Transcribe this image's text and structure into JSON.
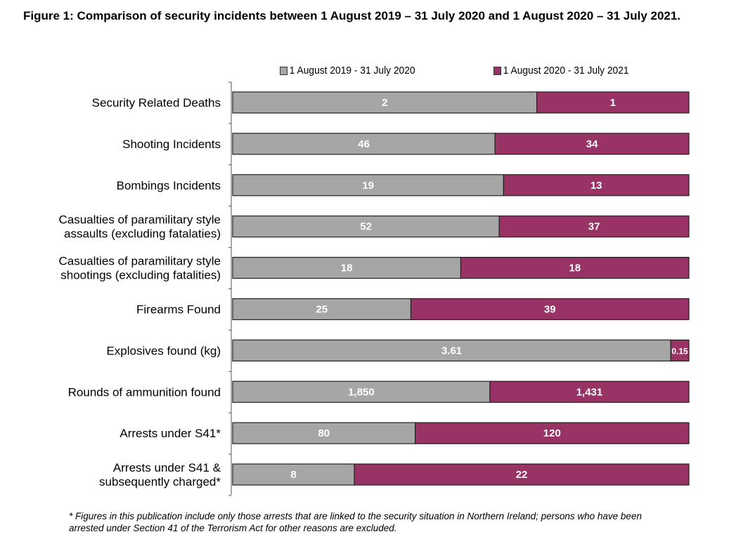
{
  "title": "Figure 1: Comparison of security incidents between 1 August 2019 – 31 July 2020 and 1 August 2020 – 31 July 2021.",
  "footnote": "* Figures in this publication include only those arrests that are linked to the security situation in Northern Ireland; persons who have been arrested under Section 41 of the Terrorism Act for other reasons are excluded.",
  "chart_data": {
    "type": "bar",
    "orientation": "horizontal",
    "stacking": "percent",
    "title": "Figure 1: Comparison of security incidents between 1 August 2019 – 31 July 2020 and 1 August 2020 – 31 July 2021.",
    "xlabel": "",
    "ylabel": "",
    "legend_position": "top",
    "grid": false,
    "categories": [
      [
        "Security Related Deaths"
      ],
      [
        "Shooting Incidents"
      ],
      [
        "Bombings Incidents"
      ],
      [
        "Casualties of paramilitary style",
        "assaults (excluding fatalaties)"
      ],
      [
        "Casualties of paramilitary style",
        "shootings (excluding fatalities)"
      ],
      [
        "Firearms Found"
      ],
      [
        "Explosives found (kg)"
      ],
      [
        "Rounds of ammunition found"
      ],
      [
        "Arrests under S41*"
      ],
      [
        "Arrests under S41 &",
        "subsequently charged*"
      ]
    ],
    "series": [
      {
        "name": "1 August 2019 - 31 July 2020",
        "color": "#a6a6a6",
        "values": [
          2,
          46,
          19,
          52,
          18,
          25,
          3.61,
          1850,
          80,
          8
        ],
        "labels": [
          "2",
          "46",
          "19",
          "52",
          "18",
          "25",
          "3.61",
          "1,850",
          "80",
          "8"
        ]
      },
      {
        "name": "1 August 2020 - 31 July 2021",
        "color": "#993366",
        "values": [
          1,
          34,
          13,
          37,
          18,
          39,
          0.15,
          1431,
          120,
          22
        ],
        "labels": [
          "1",
          "34",
          "13",
          "37",
          "18",
          "39",
          "0.15",
          "1,431",
          "120",
          "22"
        ]
      }
    ]
  }
}
